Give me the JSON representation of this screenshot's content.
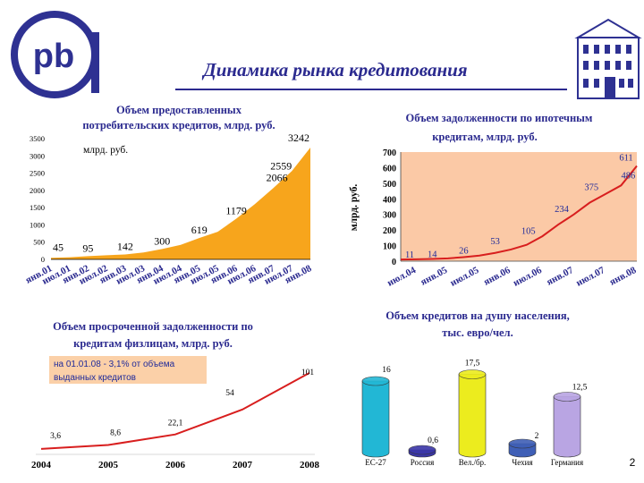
{
  "slide": {
    "title": "Динамика рынка кредитования",
    "page_number": "2",
    "logo_text": "pb"
  },
  "colors": {
    "title_blue": "#2b2a8f",
    "consumer_fill": "#f7a51c",
    "mortgage_bg": "#fbc9a6",
    "mortgage_line": "#d81e1e",
    "overdue_line": "#d81e1e",
    "annotation_bg": "#fbd0a8",
    "logo_blue": "#2e3192"
  },
  "chart_data": [
    {
      "id": "consumer",
      "type": "area",
      "title_lines": [
        "Объем предоставленных",
        "потребительских кредитов, млрд. руб."
      ],
      "unit_label": "млрд. руб.",
      "categories": [
        "янв.01",
        "июл.01",
        "янв.02",
        "июл.02",
        "янв.03",
        "июл.03",
        "янв.04",
        "июл.04",
        "янв.05",
        "июл.05",
        "янв.06",
        "июл.06",
        "янв.07",
        "июл.07",
        "янв.08"
      ],
      "values": [
        45,
        60,
        95,
        120,
        142,
        200,
        300,
        420,
        619,
        800,
        1179,
        1600,
        2066,
        2559,
        3242
      ],
      "data_labels": [
        [
          "45",
          0
        ],
        [
          "95",
          2
        ],
        [
          "142",
          4
        ],
        [
          "300",
          6
        ],
        [
          "619",
          8
        ],
        [
          "1179",
          10
        ],
        [
          "2066",
          12
        ],
        [
          "2559",
          13
        ],
        [
          "3242",
          14
        ]
      ],
      "ylim": [
        0,
        3500
      ],
      "yticks": [
        "0",
        "500",
        "1000",
        "1500",
        "2000",
        "2500",
        "3000",
        "3500"
      ]
    },
    {
      "id": "mortgage",
      "type": "line",
      "title_lines": [
        "Объем задолженности по ипотечным",
        "кредитам, млрд. руб."
      ],
      "ylabel": "млрд. руб.",
      "categories": [
        "июл.04",
        "янв.05",
        "июл.05",
        "янв.06",
        "июл.06",
        "янв.07",
        "июл.07",
        "янв.08"
      ],
      "x": [
        0,
        0.5,
        1,
        1.5,
        2,
        2.5,
        3,
        3.5,
        4,
        4.5,
        5,
        5.5,
        6,
        6.5,
        7,
        7.5
      ],
      "values": [
        11,
        12,
        14,
        18,
        26,
        36,
        53,
        75,
        105,
        160,
        234,
        300,
        375,
        430,
        486,
        611
      ],
      "data_labels": [
        [
          "11",
          0
        ],
        [
          "14",
          2
        ],
        [
          "26",
          4
        ],
        [
          "53",
          6
        ],
        [
          "105",
          8
        ],
        [
          "234",
          10
        ],
        [
          "375",
          12
        ],
        [
          "486",
          14
        ],
        [
          "611",
          15
        ]
      ],
      "ylim": [
        0,
        700
      ],
      "yticks": [
        "0",
        "100",
        "200",
        "300",
        "400",
        "500",
        "600",
        "700"
      ]
    },
    {
      "id": "overdue",
      "type": "line",
      "title_lines": [
        "Объем просроченной задолженности по",
        "кредитам физлицам, млрд. руб."
      ],
      "annotation_lines": [
        "на 01.01.08 - 3,1% от объема",
        "выданных кредитов"
      ],
      "categories": [
        "2004",
        "2005",
        "2006",
        "2007",
        "2008"
      ],
      "values": [
        3.6,
        8.6,
        22.1,
        54,
        101
      ],
      "data_labels": [
        "3,6",
        "8,6",
        "22,1",
        "54",
        "101"
      ],
      "ylim": [
        0,
        110
      ]
    },
    {
      "id": "per_capita",
      "type": "bar",
      "title_lines": [
        "Объем кредитов на душу населения,",
        "тыс. евро/чел."
      ],
      "categories": [
        "ЕС-27",
        "Россия",
        "Вел./бр.",
        "Чехия",
        "Германия"
      ],
      "values": [
        16,
        0.6,
        17.5,
        2,
        12.5
      ],
      "data_labels": [
        "16",
        "0,6",
        "17,5",
        "2",
        "12,5"
      ],
      "colors": [
        "#22b7d5",
        "#3a36a8",
        "#ecec1e",
        "#3f5fb6",
        "#b9a5e3"
      ],
      "ylim": [
        0,
        20
      ]
    }
  ]
}
